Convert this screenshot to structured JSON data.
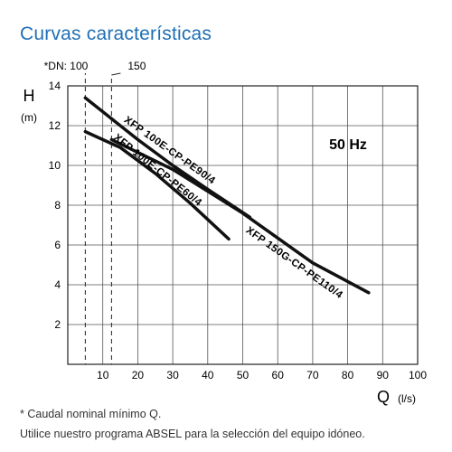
{
  "header": {
    "title": "Curvas características"
  },
  "footer": {
    "note": "* Caudal nominal mínimo Q.",
    "program": "Utilice nuestro programa ABSEL para la selección del equipo idóneo."
  },
  "chart_data": {
    "type": "line",
    "frequency_label": "50 Hz",
    "ylabel": "H",
    "yunit": "(m)",
    "xlabel": "Q",
    "xunit": "(l/s)",
    "xlim": [
      0,
      100
    ],
    "ylim": [
      0,
      14
    ],
    "xticks": [
      10,
      20,
      30,
      40,
      50,
      60,
      70,
      80,
      90,
      100
    ],
    "yticks": [
      2,
      4,
      6,
      8,
      10,
      12,
      14
    ],
    "grid": true,
    "dn_markers": [
      {
        "label": "*DN: 100",
        "x": 5
      },
      {
        "label": "150",
        "x": 12.5
      }
    ],
    "series": [
      {
        "name": "XFP 100E-CP-PE90/4",
        "x": [
          5,
          20,
          30,
          40,
          52
        ],
        "y": [
          13.4,
          11.3,
          10.0,
          8.8,
          7.4
        ]
      },
      {
        "name": "XFP 100E-CP-PE60/4",
        "x": [
          5,
          15,
          25,
          35,
          46
        ],
        "y": [
          11.7,
          10.9,
          9.6,
          8.1,
          6.3
        ]
      },
      {
        "name": "XFP 150G-CP-PE110/4",
        "x": [
          12.5,
          30,
          50,
          70,
          86
        ],
        "y": [
          11.3,
          9.8,
          7.6,
          5.1,
          3.6
        ]
      }
    ]
  }
}
